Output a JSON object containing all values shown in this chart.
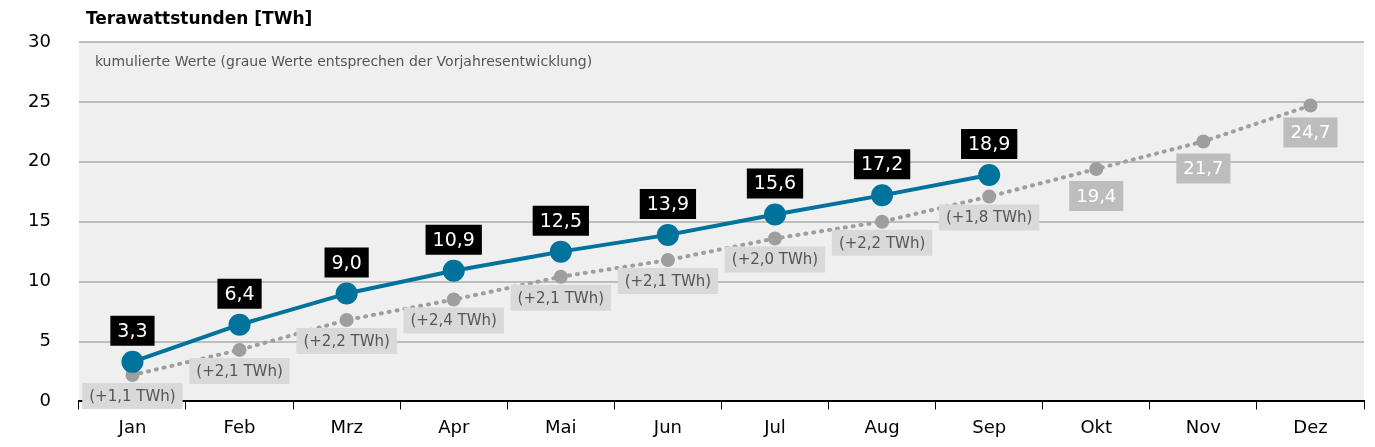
{
  "chart_data": {
    "type": "line",
    "ylabel": "Terawattstunden [TWh]",
    "annotations": [
      "kumulierte Werte (graue Werte entsprechen der Vorjahresentwicklung)",
      {
        "text": "(+1,1 TWh)",
        "x": "Jan",
        "y": 2.2
      },
      {
        "text": "(+2,1 TWh)",
        "x": "Feb",
        "y": 4.3
      },
      {
        "text": "(+2,2 TWh)",
        "x": "Mrz",
        "y": 6.8
      },
      {
        "text": "(+2,4 TWh)",
        "x": "Apr",
        "y": 8.5
      },
      {
        "text": "(+2,1 TWh)",
        "x": "Mai",
        "y": 10.4
      },
      {
        "text": "(+2,1 TWh)",
        "x": "Jun",
        "y": 11.8
      },
      {
        "text": "(+2,0 TWh)",
        "x": "Jul",
        "y": 13.6
      },
      {
        "text": "(+2,2 TWh)",
        "x": "Aug",
        "y": 15.0
      },
      {
        "text": "(+1,8 TWh)",
        "x": "Sep",
        "y": 17.1
      }
    ],
    "categories": [
      "Jan",
      "Feb",
      "Mrz",
      "Apr",
      "Mai",
      "Jun",
      "Jul",
      "Aug",
      "Sep",
      "Okt",
      "Nov",
      "Dez"
    ],
    "series": [
      {
        "color": "#9e9e9e",
        "line_style": "dotted",
        "values": [
          2.2,
          4.3,
          6.8,
          8.5,
          10.4,
          11.8,
          13.6,
          15.0,
          17.1,
          19.4,
          21.7,
          24.7
        ],
        "value_labels": [
          null,
          null,
          null,
          null,
          null,
          null,
          null,
          null,
          null,
          "19,4",
          "21,7",
          "24,7"
        ]
      },
      {
        "color": "#00739c",
        "line_style": "solid",
        "values": [
          3.3,
          6.4,
          9.0,
          10.9,
          12.5,
          13.9,
          15.6,
          17.2,
          18.9,
          null,
          null,
          null
        ],
        "value_labels": [
          "3,3",
          "6,4",
          "9,0",
          "10,9",
          "12,5",
          "13,9",
          "15,6",
          "17,2",
          "18,9",
          null,
          null,
          null
        ]
      }
    ],
    "ylim": [
      0,
      30
    ],
    "yticks": [
      0,
      5,
      10,
      15,
      20,
      25,
      30
    ],
    "grid": "y",
    "legend": false,
    "marker": "circle"
  }
}
